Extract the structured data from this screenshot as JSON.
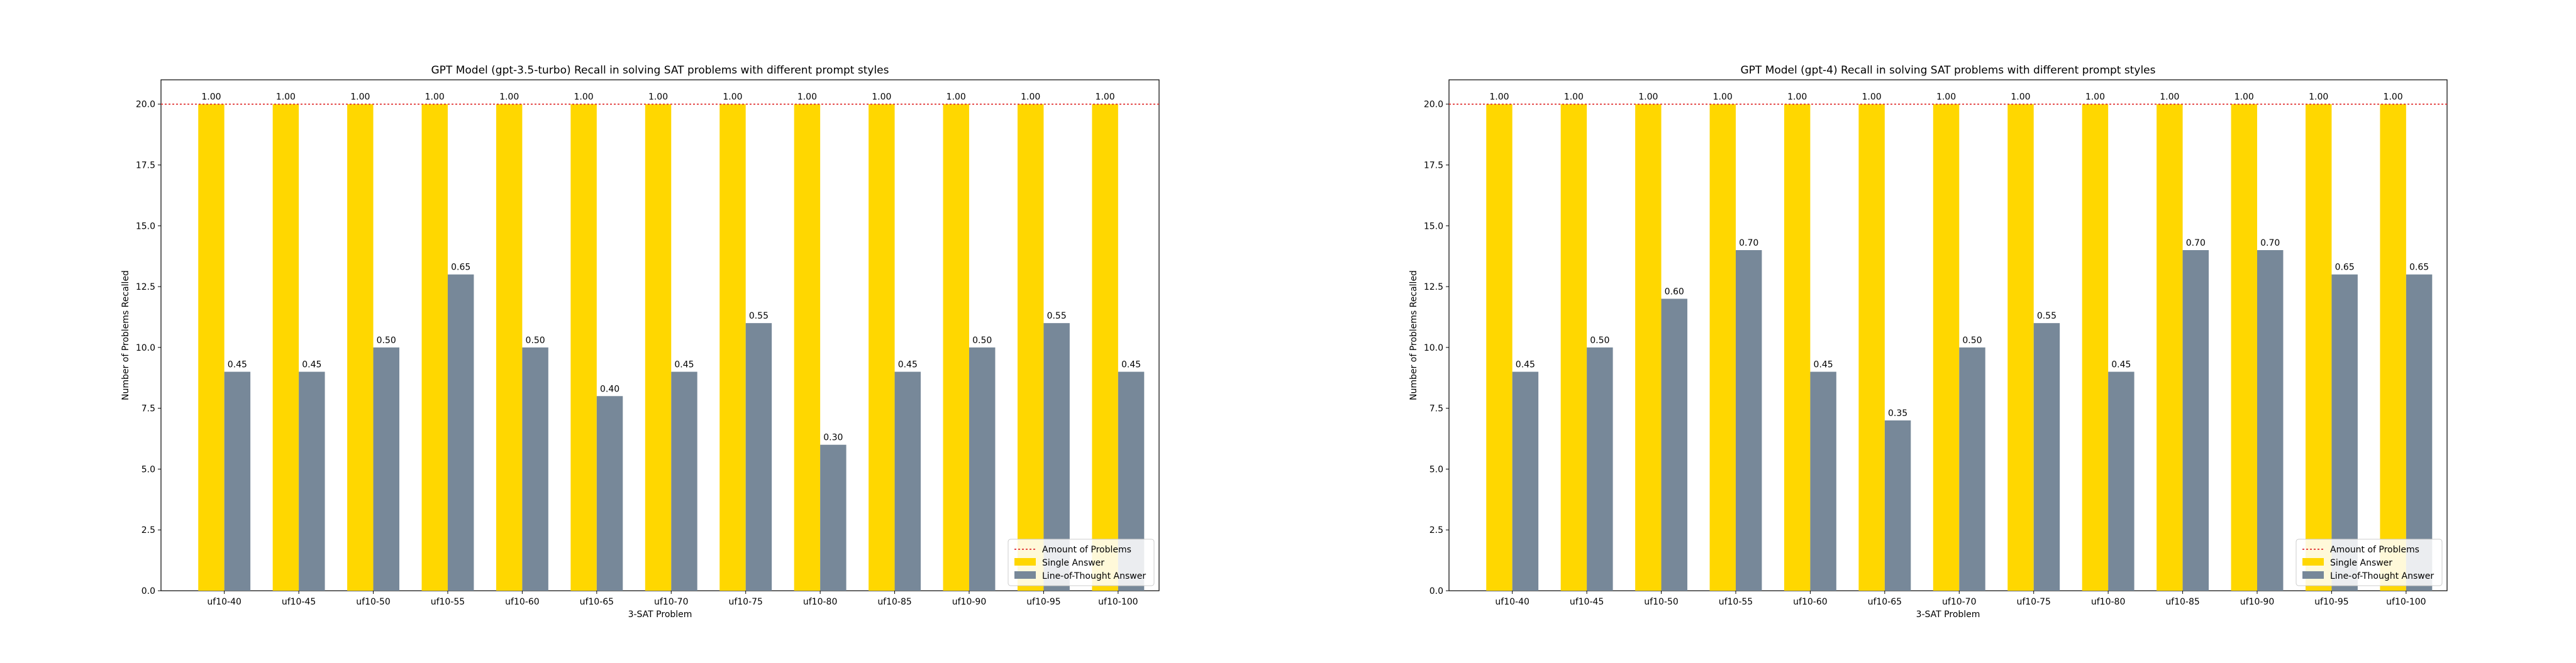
{
  "chart_data": [
    {
      "type": "bar",
      "title": "GPT Model (gpt-3.5-turbo) Recall in solving SAT problems with different prompt styles",
      "xlabel": "3-SAT Problem",
      "ylabel": "Number of Problems Recalled",
      "ylim": [
        0,
        21
      ],
      "yticks": [
        "0.0",
        "2.5",
        "5.0",
        "7.5",
        "10.0",
        "12.5",
        "15.0",
        "17.5",
        "20.0"
      ],
      "categories": [
        "uf10-40",
        "uf10-45",
        "uf10-50",
        "uf10-55",
        "uf10-60",
        "uf10-65",
        "uf10-70",
        "uf10-75",
        "uf10-80",
        "uf10-85",
        "uf10-90",
        "uf10-95",
        "uf10-100"
      ],
      "reference_line": {
        "name": "Amount of Problems",
        "value": 20,
        "color": "#e03030"
      },
      "series": [
        {
          "name": "Single Answer",
          "color": "#ffd700",
          "values": [
            20,
            20,
            20,
            20,
            20,
            20,
            20,
            20,
            20,
            20,
            20,
            20,
            20
          ],
          "labels": [
            "1.00",
            "1.00",
            "1.00",
            "1.00",
            "1.00",
            "1.00",
            "1.00",
            "1.00",
            "1.00",
            "1.00",
            "1.00",
            "1.00",
            "1.00"
          ]
        },
        {
          "name": "Line-of-Thought Answer",
          "color": "#778899",
          "values": [
            9,
            9,
            10,
            13,
            10,
            8,
            9,
            11,
            6,
            9,
            10,
            11,
            9
          ],
          "labels": [
            "0.45",
            "0.45",
            "0.50",
            "0.65",
            "0.50",
            "0.40",
            "0.45",
            "0.55",
            "0.30",
            "0.45",
            "0.50",
            "0.55",
            "0.45"
          ]
        }
      ],
      "legend_position": "lower right",
      "grid": false
    },
    {
      "type": "bar",
      "title": "GPT Model (gpt-4) Recall in solving SAT problems with different prompt styles",
      "xlabel": "3-SAT Problem",
      "ylabel": "Number of Problems Recalled",
      "ylim": [
        0,
        21
      ],
      "yticks": [
        "0.0",
        "2.5",
        "5.0",
        "7.5",
        "10.0",
        "12.5",
        "15.0",
        "17.5",
        "20.0"
      ],
      "categories": [
        "uf10-40",
        "uf10-45",
        "uf10-50",
        "uf10-55",
        "uf10-60",
        "uf10-65",
        "uf10-70",
        "uf10-75",
        "uf10-80",
        "uf10-85",
        "uf10-90",
        "uf10-95",
        "uf10-100"
      ],
      "reference_line": {
        "name": "Amount of Problems",
        "value": 20,
        "color": "#e03030"
      },
      "series": [
        {
          "name": "Single Answer",
          "color": "#ffd700",
          "values": [
            20,
            20,
            20,
            20,
            20,
            20,
            20,
            20,
            20,
            20,
            20,
            20,
            20
          ],
          "labels": [
            "1.00",
            "1.00",
            "1.00",
            "1.00",
            "1.00",
            "1.00",
            "1.00",
            "1.00",
            "1.00",
            "1.00",
            "1.00",
            "1.00",
            "1.00"
          ]
        },
        {
          "name": "Line-of-Thought Answer",
          "color": "#778899",
          "values": [
            9,
            10,
            12,
            14,
            9,
            7,
            10,
            11,
            9,
            14,
            14,
            13,
            13
          ],
          "labels": [
            "0.45",
            "0.50",
            "0.60",
            "0.70",
            "0.45",
            "0.35",
            "0.50",
            "0.55",
            "0.45",
            "0.70",
            "0.70",
            "0.65",
            "0.65"
          ]
        }
      ],
      "legend_position": "lower right",
      "grid": false
    }
  ]
}
